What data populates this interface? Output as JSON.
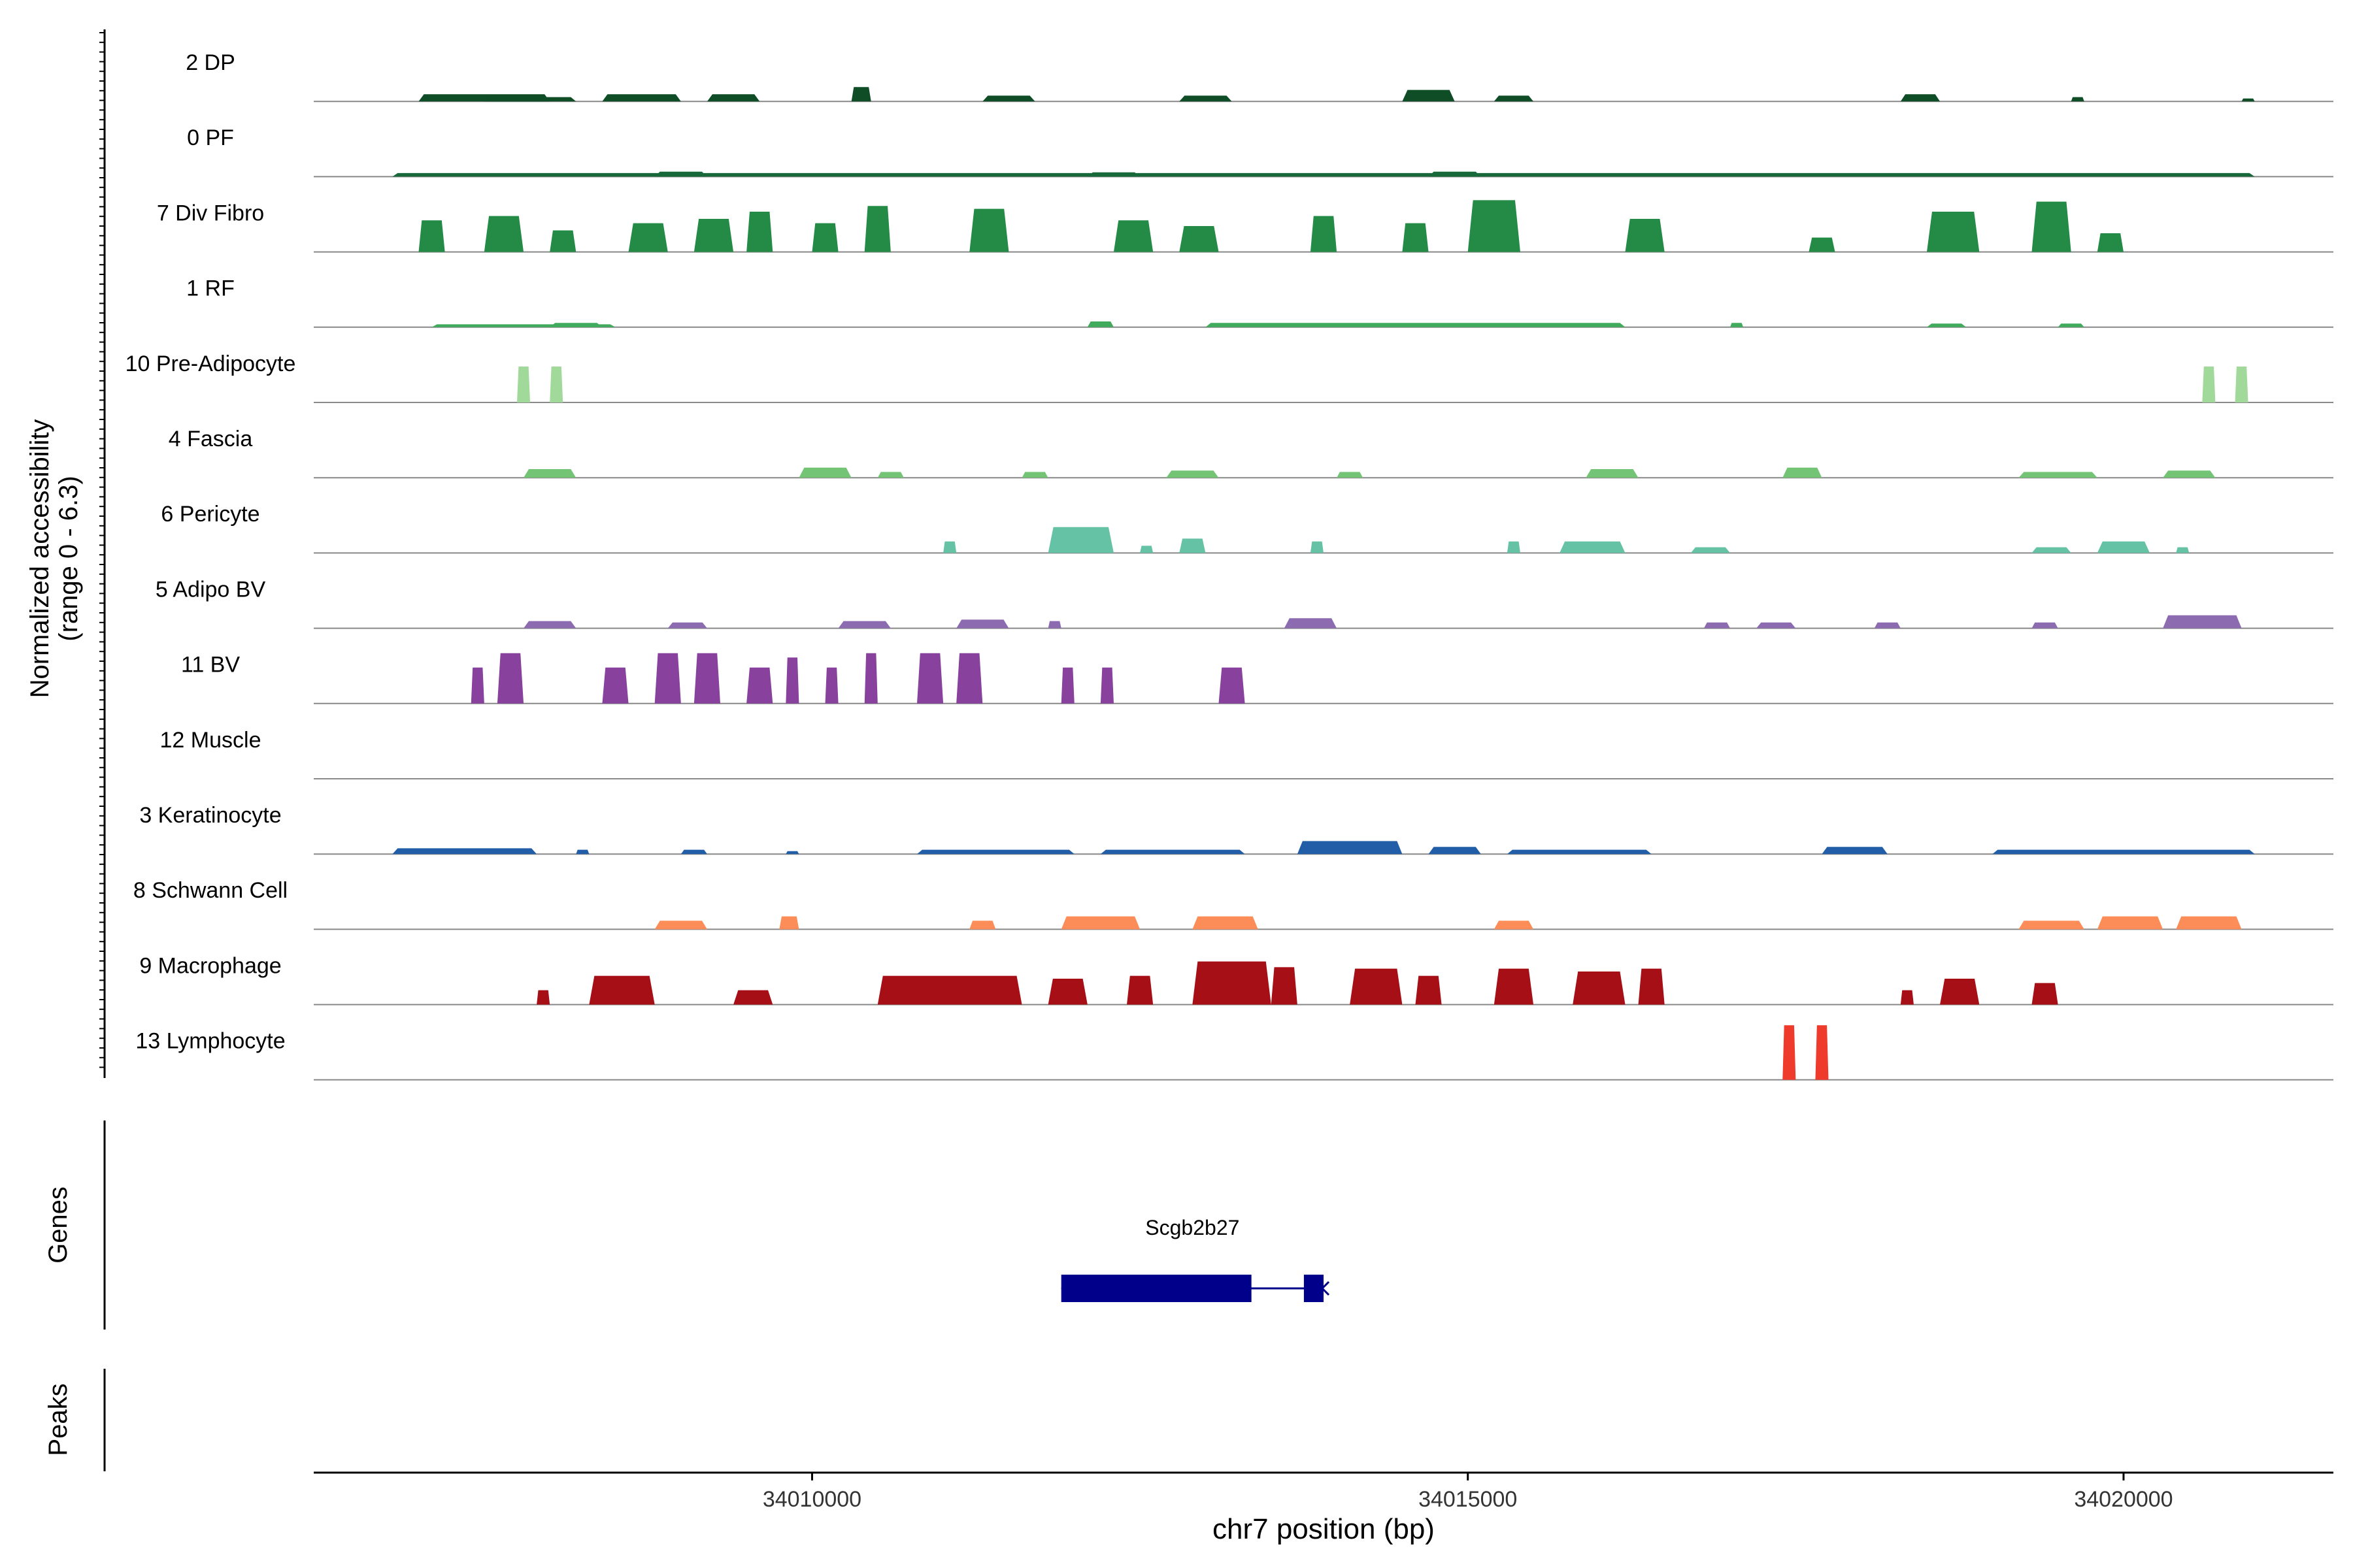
{
  "chart_data": {
    "type": "coverage-track",
    "title": "",
    "ylabel_line1": "Normalized accessibility",
    "ylabel_line2": "(range 0 - 6.3)",
    "y_range": [
      0,
      6.3
    ],
    "xlabel": "chr7 position (bp)",
    "xlim": [
      34006200,
      34021600
    ],
    "x_ticks": [
      34010000,
      34015000,
      34020000
    ],
    "x_tick_labels": [
      "34010000",
      "34015000",
      "34020000"
    ],
    "genes_label": "Genes",
    "peaks_label": "Peaks",
    "tracks": [
      {
        "name": "2 DP",
        "color": "#0f4d27",
        "peaks": [
          [
            34007000,
            34008000,
            0.5
          ],
          [
            34007500,
            34008200,
            0.3
          ],
          [
            34008400,
            34009000,
            0.5
          ],
          [
            34009200,
            34009600,
            0.5
          ],
          [
            34010300,
            34010450,
            1.0
          ],
          [
            34011300,
            34011700,
            0.4
          ],
          [
            34012800,
            34013200,
            0.4
          ],
          [
            34014500,
            34014900,
            0.8
          ],
          [
            34015200,
            34015500,
            0.4
          ],
          [
            34018300,
            34018600,
            0.5
          ],
          [
            34019600,
            34019700,
            0.3
          ],
          [
            34020900,
            34021000,
            0.2
          ]
        ]
      },
      {
        "name": "0 PF",
        "color": "#17693a",
        "peaks": [
          [
            34006800,
            34021000,
            0.25
          ],
          [
            34008800,
            34009200,
            0.35
          ],
          [
            34012100,
            34012500,
            0.3
          ],
          [
            34014700,
            34015100,
            0.35
          ]
        ]
      },
      {
        "name": "7 Div Fibro",
        "color": "#238b45",
        "peaks": [
          [
            34007000,
            34007200,
            2.2
          ],
          [
            34007500,
            34007800,
            2.5
          ],
          [
            34008000,
            34008200,
            1.5
          ],
          [
            34008600,
            34008900,
            2.0
          ],
          [
            34009100,
            34009400,
            2.3
          ],
          [
            34009500,
            34009700,
            2.8
          ],
          [
            34010000,
            34010200,
            2.0
          ],
          [
            34010400,
            34010600,
            3.2
          ],
          [
            34011200,
            34011500,
            3.0
          ],
          [
            34012300,
            34012600,
            2.2
          ],
          [
            34012800,
            34013100,
            1.8
          ],
          [
            34013800,
            34014000,
            2.5
          ],
          [
            34014500,
            34014700,
            2.0
          ],
          [
            34015000,
            34015400,
            3.6
          ],
          [
            34016200,
            34016500,
            2.3
          ],
          [
            34017600,
            34017800,
            1.0
          ],
          [
            34018500,
            34018900,
            2.8
          ],
          [
            34019300,
            34019600,
            3.5
          ],
          [
            34019800,
            34020000,
            1.3
          ]
        ]
      },
      {
        "name": "1 RF",
        "color": "#41ab5d",
        "peaks": [
          [
            34007100,
            34008500,
            0.2
          ],
          [
            34008000,
            34008400,
            0.3
          ],
          [
            34012100,
            34012300,
            0.4
          ],
          [
            34013000,
            34016200,
            0.3
          ],
          [
            34017000,
            34017100,
            0.3
          ],
          [
            34018500,
            34018800,
            0.25
          ],
          [
            34019500,
            34019700,
            0.25
          ]
        ]
      },
      {
        "name": "10 Pre-Adipocyte",
        "color": "#a1d99b",
        "peaks": [
          [
            34007750,
            34007850,
            2.5
          ],
          [
            34008000,
            34008100,
            2.5
          ],
          [
            34020600,
            34020700,
            2.5
          ],
          [
            34020850,
            34020950,
            2.5
          ]
        ]
      },
      {
        "name": "4 Fascia",
        "color": "#74c476",
        "peaks": [
          [
            34007800,
            34008200,
            0.6
          ],
          [
            34009900,
            34010300,
            0.7
          ],
          [
            34010500,
            34010700,
            0.4
          ],
          [
            34011600,
            34011800,
            0.4
          ],
          [
            34012700,
            34013100,
            0.5
          ],
          [
            34014000,
            34014200,
            0.4
          ],
          [
            34015900,
            34016300,
            0.6
          ],
          [
            34017400,
            34017700,
            0.7
          ],
          [
            34019200,
            34019800,
            0.4
          ],
          [
            34020300,
            34020700,
            0.5
          ]
        ]
      },
      {
        "name": "6 Pericyte",
        "color": "#66c2a4",
        "peaks": [
          [
            34011000,
            34011100,
            0.8
          ],
          [
            34011800,
            34012300,
            1.8
          ],
          [
            34012500,
            34012600,
            0.5
          ],
          [
            34012800,
            34013000,
            1.0
          ],
          [
            34013800,
            34013900,
            0.8
          ],
          [
            34015300,
            34015400,
            0.8
          ],
          [
            34015700,
            34016200,
            0.8
          ],
          [
            34016700,
            34017000,
            0.4
          ],
          [
            34019300,
            34019600,
            0.4
          ],
          [
            34019800,
            34020200,
            0.8
          ],
          [
            34020400,
            34020500,
            0.4
          ]
        ]
      },
      {
        "name": "5 Adipo BV",
        "color": "#8c6bb1",
        "peaks": [
          [
            34007800,
            34008200,
            0.5
          ],
          [
            34008900,
            34009200,
            0.4
          ],
          [
            34010200,
            34010600,
            0.5
          ],
          [
            34011100,
            34011500,
            0.6
          ],
          [
            34011800,
            34011900,
            0.5
          ],
          [
            34013600,
            34014000,
            0.7
          ],
          [
            34016800,
            34017000,
            0.4
          ],
          [
            34017200,
            34017500,
            0.4
          ],
          [
            34018100,
            34018300,
            0.4
          ],
          [
            34019300,
            34019500,
            0.4
          ],
          [
            34020300,
            34020900,
            0.9
          ]
        ]
      },
      {
        "name": "11 BV",
        "color": "#88419d",
        "peaks": [
          [
            34007400,
            34007500,
            2.5
          ],
          [
            34007600,
            34007800,
            3.5
          ],
          [
            34008400,
            34008600,
            2.5
          ],
          [
            34008800,
            34009000,
            3.5
          ],
          [
            34009100,
            34009300,
            3.5
          ],
          [
            34009500,
            34009700,
            2.5
          ],
          [
            34009800,
            34009900,
            3.2
          ],
          [
            34010100,
            34010200,
            2.5
          ],
          [
            34010400,
            34010500,
            3.5
          ],
          [
            34010800,
            34011000,
            3.5
          ],
          [
            34011100,
            34011300,
            3.5
          ],
          [
            34011900,
            34012000,
            2.5
          ],
          [
            34012200,
            34012300,
            2.5
          ],
          [
            34013100,
            34013300,
            2.5
          ]
        ]
      },
      {
        "name": "12 Muscle",
        "color": "#e31a1c",
        "peaks": []
      },
      {
        "name": "3 Keratinocyte",
        "color": "#225ea8",
        "peaks": [
          [
            34006800,
            34007900,
            0.4
          ],
          [
            34008200,
            34008300,
            0.3
          ],
          [
            34009000,
            34009200,
            0.3
          ],
          [
            34009800,
            34009900,
            0.2
          ],
          [
            34010800,
            34012000,
            0.3
          ],
          [
            34012200,
            34013300,
            0.3
          ],
          [
            34013700,
            34014500,
            0.9
          ],
          [
            34014700,
            34015100,
            0.5
          ],
          [
            34015300,
            34016400,
            0.3
          ],
          [
            34017700,
            34018200,
            0.5
          ],
          [
            34019000,
            34021000,
            0.3
          ]
        ]
      },
      {
        "name": "8 Schwann Cell",
        "color": "#fc8d59",
        "peaks": [
          [
            34008800,
            34009200,
            0.6
          ],
          [
            34009750,
            34009900,
            0.9
          ],
          [
            34011200,
            34011400,
            0.6
          ],
          [
            34011900,
            34012500,
            0.9
          ],
          [
            34012900,
            34013400,
            0.9
          ],
          [
            34015200,
            34015500,
            0.6
          ],
          [
            34019200,
            34019700,
            0.6
          ],
          [
            34019800,
            34020300,
            0.9
          ],
          [
            34020400,
            34020900,
            0.9
          ]
        ]
      },
      {
        "name": "9 Macrophage",
        "color": "#a50f15",
        "peaks": [
          [
            34007900,
            34008000,
            1.0
          ],
          [
            34008300,
            34008800,
            2.0
          ],
          [
            34009400,
            34009700,
            1.0
          ],
          [
            34010500,
            34011600,
            2.0
          ],
          [
            34011800,
            34012100,
            1.8
          ],
          [
            34012400,
            34012600,
            2.0
          ],
          [
            34012900,
            34013500,
            3.0
          ],
          [
            34013500,
            34013700,
            2.6
          ],
          [
            34014100,
            34014500,
            2.5
          ],
          [
            34014600,
            34014800,
            2.0
          ],
          [
            34015200,
            34015500,
            2.5
          ],
          [
            34015800,
            34016200,
            2.3
          ],
          [
            34016300,
            34016500,
            2.5
          ],
          [
            34018300,
            34018400,
            1.0
          ],
          [
            34018600,
            34018900,
            1.8
          ],
          [
            34019300,
            34019500,
            1.5
          ]
        ]
      },
      {
        "name": "13 Lymphocyte",
        "color": "#ef3b2c",
        "peaks": [
          [
            34017400,
            34017500,
            3.8
          ],
          [
            34017650,
            34017750,
            3.8
          ]
        ]
      }
    ],
    "gene": {
      "name": "Scgb2b27",
      "start": 34011900,
      "end": 34013900,
      "exons": [
        [
          34011900,
          34013350
        ],
        [
          34013750,
          34013900
        ]
      ],
      "strand": "-",
      "color": "#00008b"
    }
  }
}
